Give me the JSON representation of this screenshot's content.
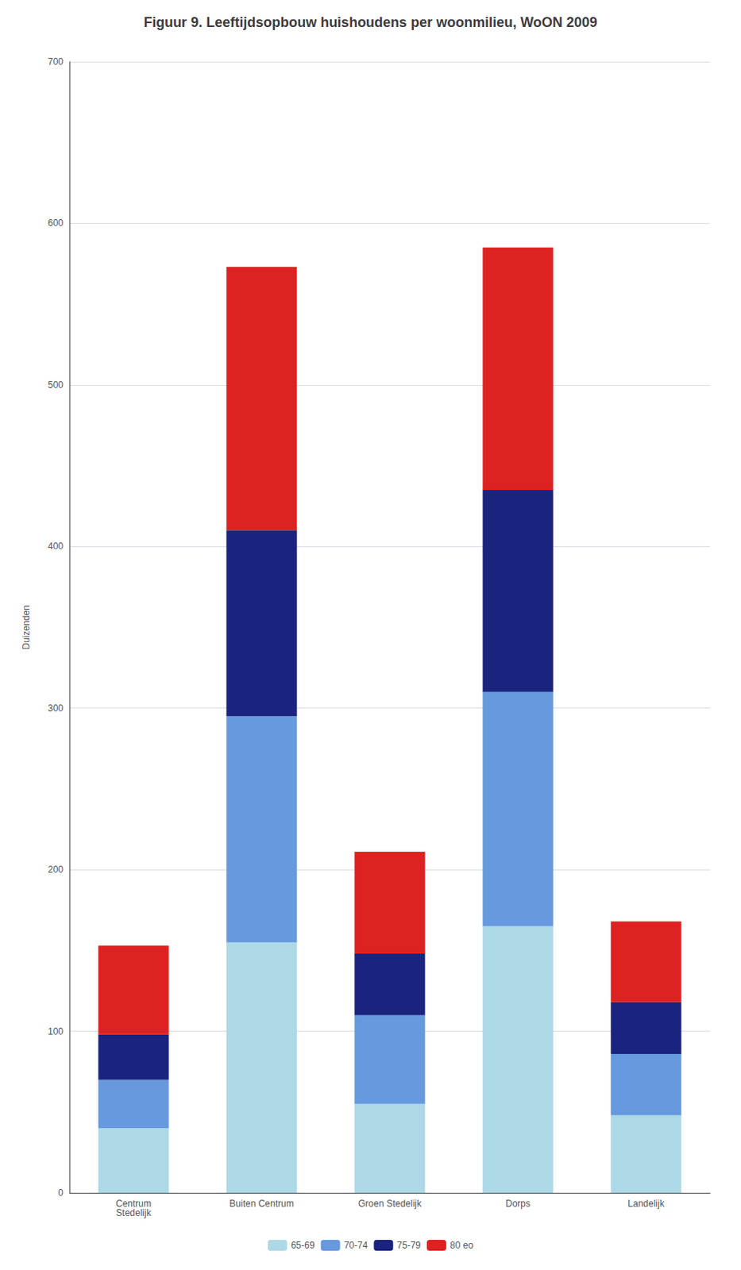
{
  "chart_data": {
    "type": "bar",
    "title": "Figuur 9. Leeftijdsopbouw huishoudens per woonmilieu, WoON 2009",
    "categories": [
      "Centrum\nStedelijk",
      "Buiten Centrum",
      "Groen Stedelijk",
      "Dorps",
      "Landelijk"
    ],
    "series": [
      {
        "name": "65-69",
        "color": "#add8e6",
        "values": [
          40,
          155,
          55,
          165,
          48
        ]
      },
      {
        "name": "70-74",
        "color": "#6699dd",
        "values": [
          30,
          140,
          55,
          145,
          38
        ]
      },
      {
        "name": "75-79",
        "color": "#1a237e",
        "values": [
          28,
          115,
          38,
          125,
          32
        ]
      },
      {
        "name": "80 eo",
        "color": "#dd2222",
        "values": [
          55,
          163,
          63,
          150,
          50
        ]
      }
    ],
    "stacked": true,
    "ylabel": "Duizenden",
    "ylim": [
      0,
      700
    ],
    "yticks": [
      0,
      100,
      200,
      300,
      400,
      500,
      600,
      700
    ],
    "grid": true,
    "legend": "bottom"
  }
}
